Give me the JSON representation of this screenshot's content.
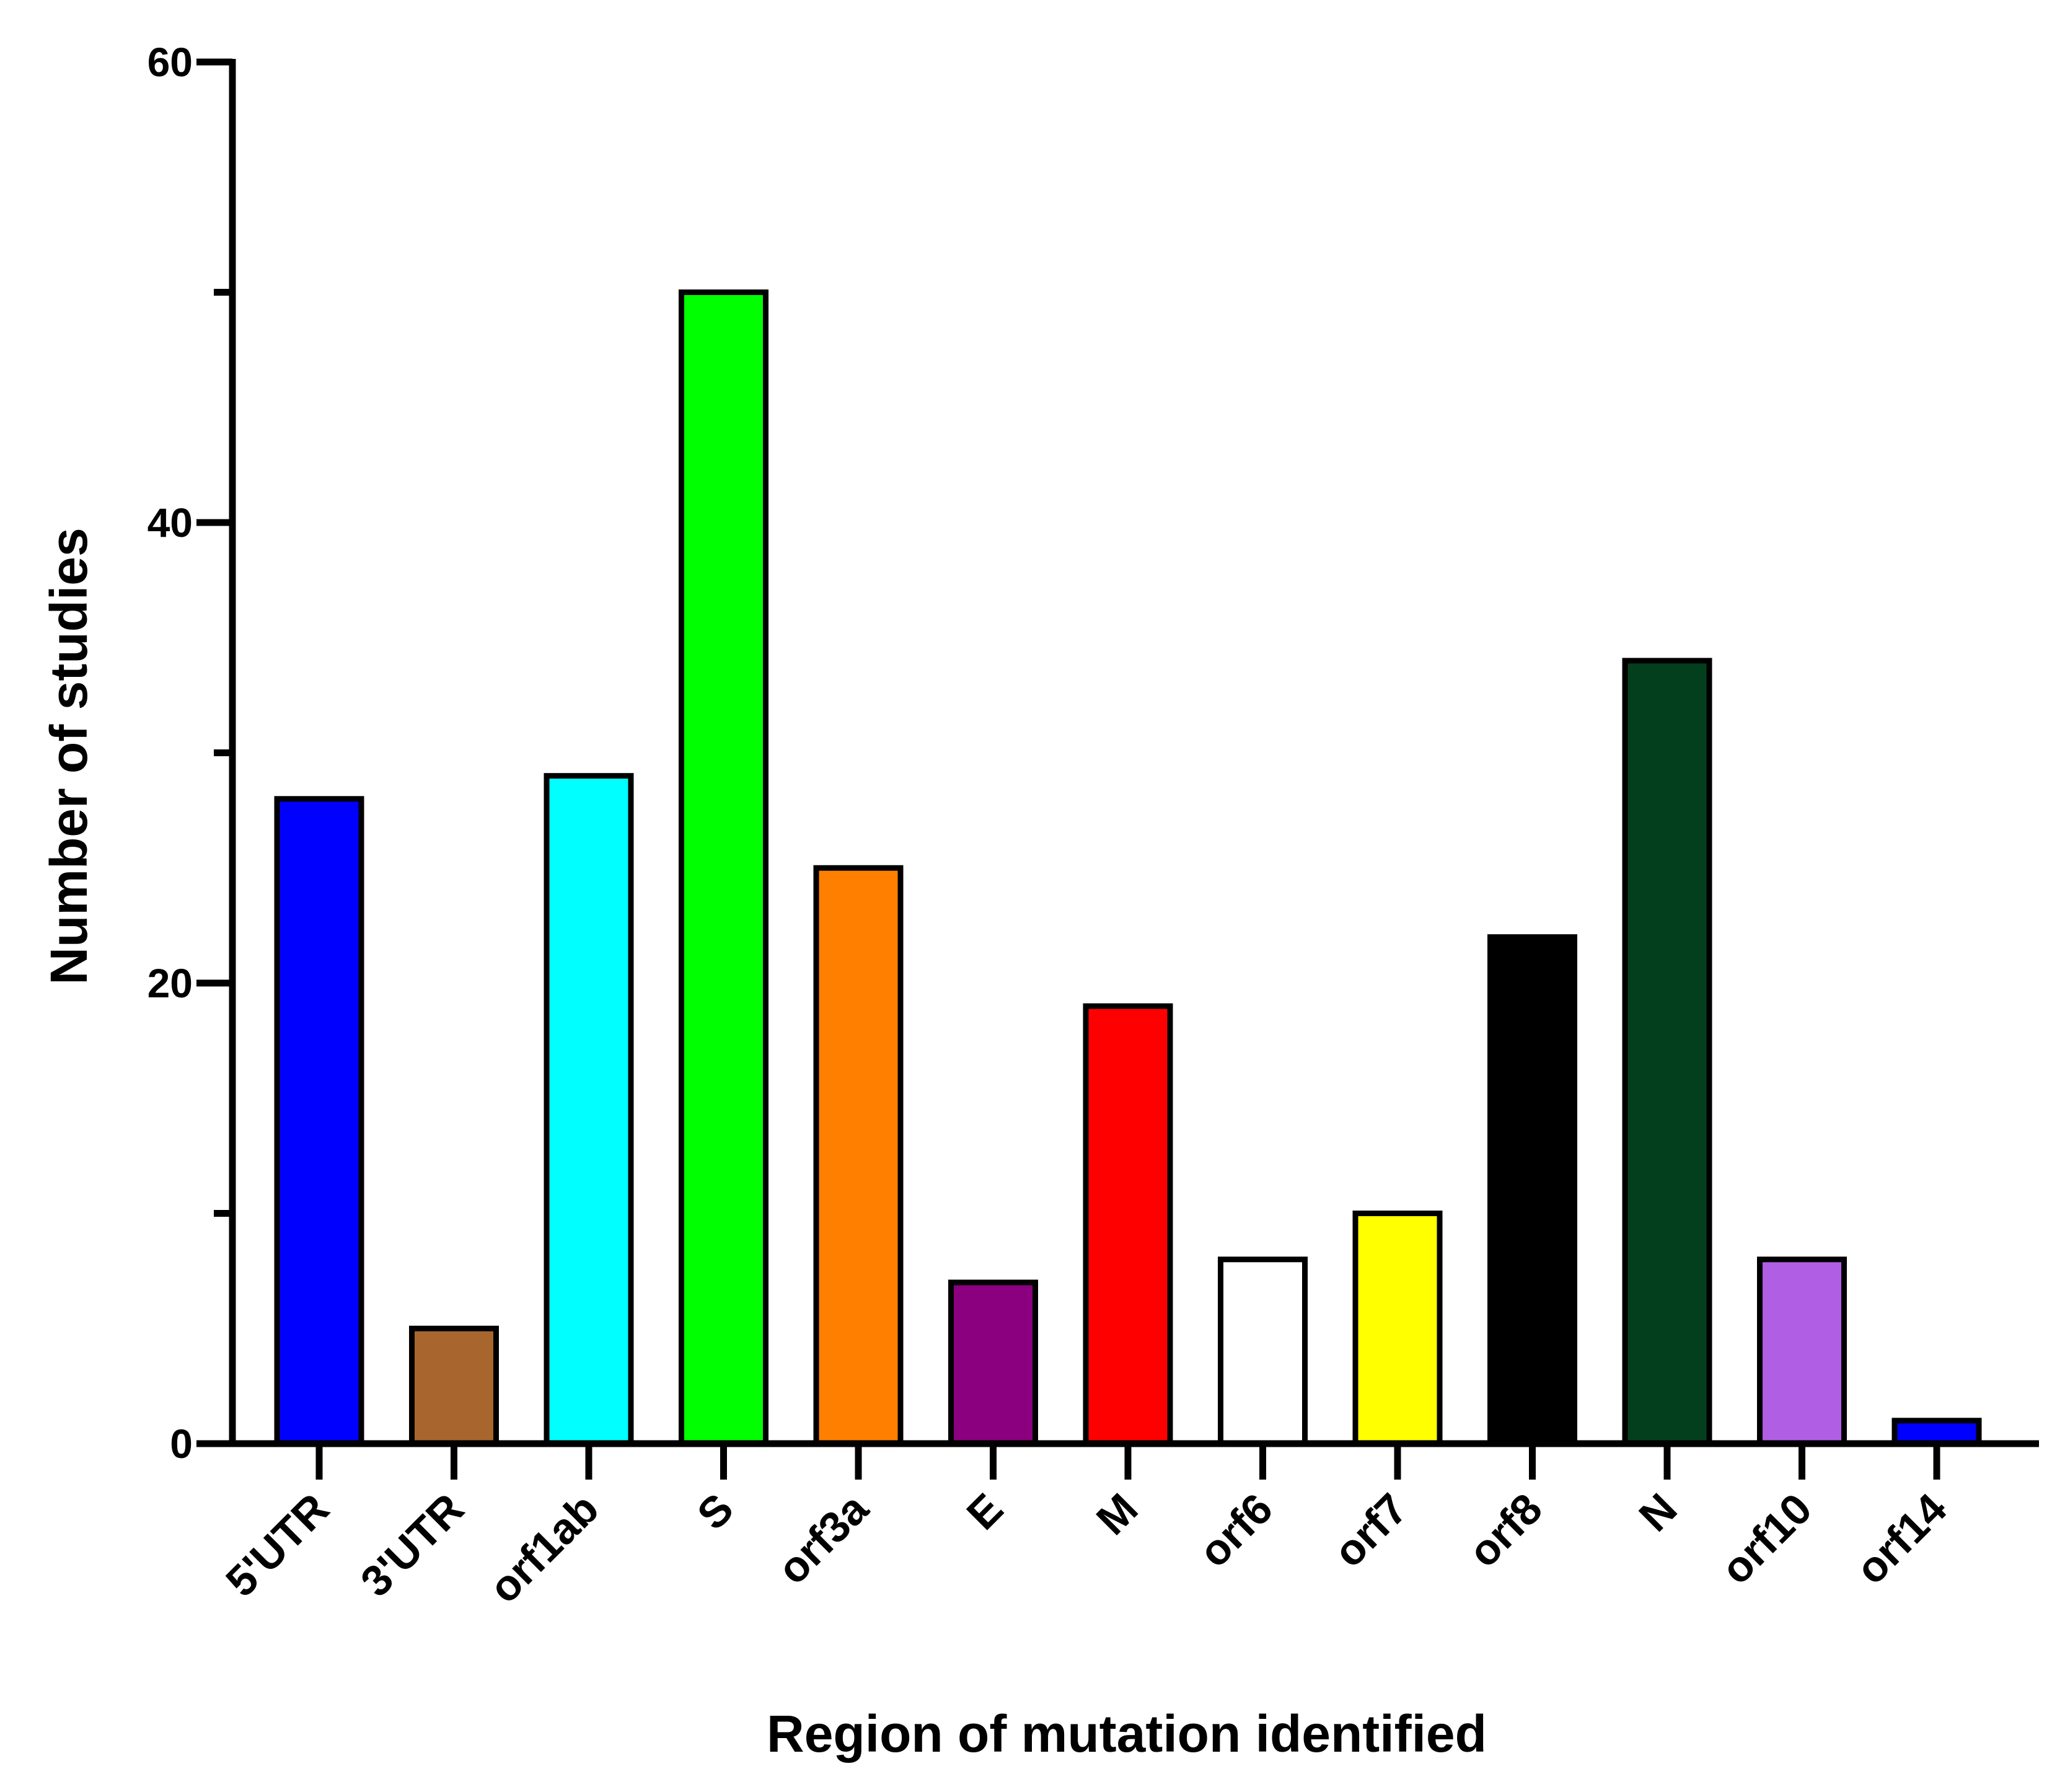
{
  "chart_data": {
    "type": "bar",
    "title": "",
    "xlabel": "Region of mutation identified",
    "ylabel": "Number of studies",
    "ylim": [
      0,
      60
    ],
    "yticks": [
      0,
      20,
      40,
      60
    ],
    "ytick_labels": [
      "0",
      "20",
      "40",
      "60"
    ],
    "grid": false,
    "legend": "none",
    "categories": [
      "5'UTR",
      "3'UTR",
      "orf1ab",
      "S",
      "orf3a",
      "E",
      "M",
      "orf6",
      "orf7",
      "orf8",
      "N",
      "orf10",
      "orf14"
    ],
    "values": [
      28,
      5,
      29,
      50,
      25,
      7,
      19,
      8,
      10,
      22,
      34,
      8,
      1
    ],
    "colors": [
      "#0000ff",
      "#a8662e",
      "#00ffff",
      "#00ff00",
      "#ff8000",
      "#8b007f",
      "#ff0000",
      "#ffffff",
      "#ffff00",
      "#000000",
      "#033f1c",
      "#b05ee3",
      "#0000ff"
    ]
  }
}
